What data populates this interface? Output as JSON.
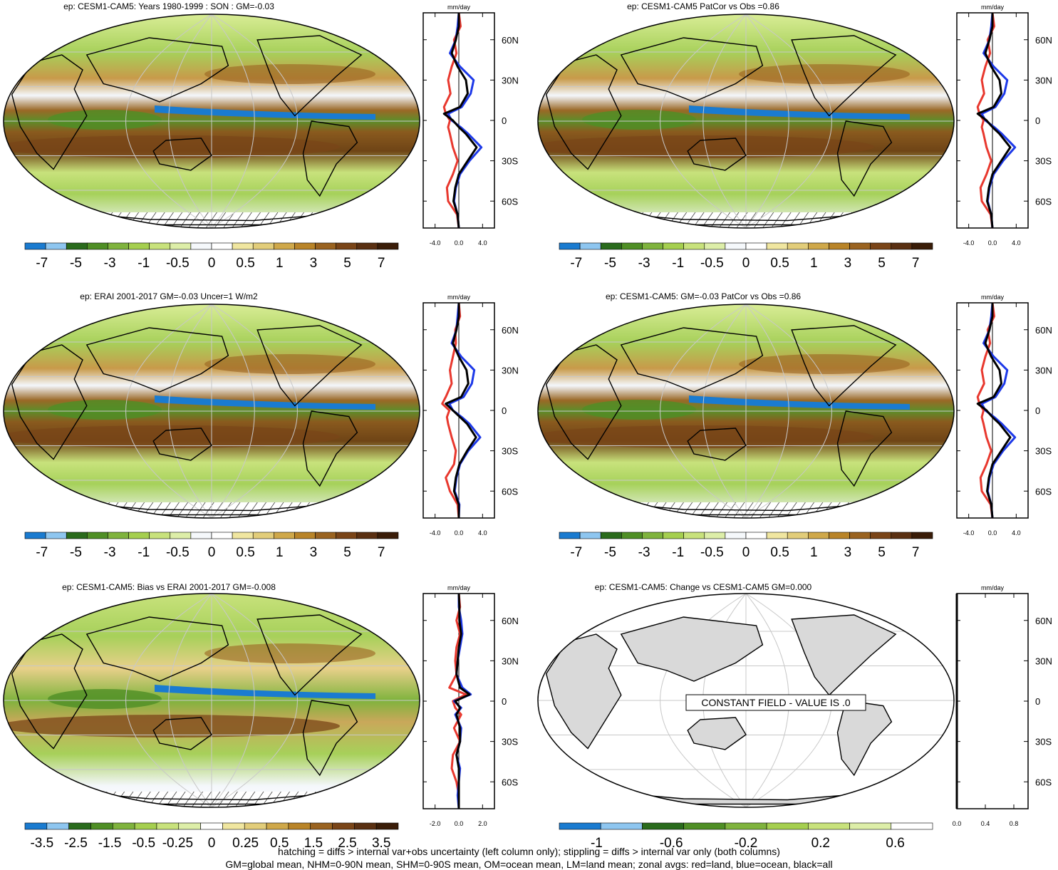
{
  "colors": {
    "precip_scale": [
      "#1a7bd0",
      "#8ec6f0",
      "#2a6b1c",
      "#4f8f25",
      "#7fb33d",
      "#a5cf4f",
      "#c8e27c",
      "#ddeea8",
      "#f5f8fb",
      "#ffffff",
      "#f0e6a0",
      "#e2cd7a",
      "#cfa84a",
      "#b98428",
      "#9a6320",
      "#7a4518",
      "#5a3012",
      "#3a1d08"
    ],
    "diff_scale": [
      "#1a7bd0",
      "#8ec6f0",
      "#2a6b1c",
      "#4f8f25",
      "#7fb33d",
      "#a5cf4f",
      "#c8e27c",
      "#ddeea8",
      "#ffffff",
      "#f0e6a0",
      "#e2cd7a",
      "#cfa84a",
      "#b98428",
      "#9a6320",
      "#7a4518",
      "#5a3012",
      "#3a1d08"
    ],
    "change_scale": [
      "#1a7bd0",
      "#8ec6f0",
      "#2a6b1c",
      "#4f8f25",
      "#7fb33d",
      "#a5cf4f",
      "#c8e27c",
      "#ddeea8",
      "#ffffff"
    ],
    "land_gray": "#d9d9d9",
    "land": "#e8382e",
    "ocean": "#1d39e8",
    "all": "#000000"
  },
  "panels": [
    {
      "title": "ep: CESM1-CAM5: Years 1980-1999 : SON : GM=-0.03",
      "kind": "field",
      "colorbar_labels": [
        "-7",
        "-5",
        "-3",
        "-1",
        "-0.5",
        "0",
        "0.5",
        "1",
        "3",
        "5",
        "7"
      ],
      "zonal_xticks": [
        "-4.0",
        "0.0",
        "4.0"
      ],
      "zonal_xlim": [
        -6,
        6
      ]
    },
    {
      "title": "ep: CESM1-CAM5 PatCor vs Obs =0.86",
      "kind": "field",
      "colorbar_labels": [
        "-7",
        "-5",
        "-3",
        "-1",
        "-0.5",
        "0",
        "0.5",
        "1",
        "3",
        "5",
        "7"
      ],
      "zonal_xticks": [
        "-4.0",
        "0.0",
        "4.0"
      ],
      "zonal_xlim": [
        -6,
        6
      ]
    },
    {
      "title": "ep: ERAI 2001-2017 GM=-0.03 Uncer=1 W/m2",
      "kind": "field",
      "colorbar_labels": [
        "-7",
        "-5",
        "-3",
        "-1",
        "-0.5",
        "0",
        "0.5",
        "1",
        "3",
        "5",
        "7"
      ],
      "zonal_xticks": [
        "-4.0",
        "0.0",
        "4.0"
      ],
      "zonal_xlim": [
        -6,
        6
      ]
    },
    {
      "title": "ep: CESM1-CAM5: GM=-0.03 PatCor vs Obs =0.86",
      "kind": "field",
      "colorbar_labels": [
        "-7",
        "-5",
        "-3",
        "-1",
        "-0.5",
        "0",
        "0.5",
        "1",
        "3",
        "5",
        "7"
      ],
      "zonal_xticks": [
        "-4.0",
        "0.0",
        "4.0"
      ],
      "zonal_xlim": [
        -6,
        6
      ]
    },
    {
      "title": "ep: CESM1-CAM5: Bias vs ERAI 2001-2017  GM=-0.008",
      "kind": "bias",
      "colorbar_labels": [
        "-3.5",
        "-2.5",
        "-1.5",
        "-0.5",
        "-0.25",
        "0",
        "0.25",
        "0.5",
        "1.5",
        "2.5",
        "3.5"
      ],
      "zonal_xticks": [
        "-2.0",
        "0.0",
        "2.0"
      ],
      "zonal_xlim": [
        -3,
        3
      ]
    },
    {
      "title": "ep: CESM1-CAM5: Change vs CESM1-CAM5 GM=0.000",
      "kind": "change",
      "colorbar_labels": [
        "-1",
        "-0.6",
        "-0.2",
        "0.2",
        "0.6"
      ],
      "zonal_xticks": [
        "0.0",
        "0.4",
        "0.8"
      ],
      "zonal_xlim": [
        0,
        1
      ],
      "message": "CONSTANT FIELD - VALUE IS .0"
    }
  ],
  "zonal_units": "mm/day",
  "lat_ticks": [
    "60N",
    "30N",
    "0",
    "30S",
    "60S"
  ],
  "chart_data": [
    {
      "type": "line",
      "title": "ep: CESM1-CAM5: Years 1980-1999 : SON : GM=-0.03",
      "x_label": "mm/day",
      "xlim": [
        -6,
        6
      ],
      "ylim": [
        -80,
        80
      ],
      "y_tick_labels": [
        "60N",
        "30N",
        "0",
        "30S",
        "60S"
      ],
      "y": [
        80,
        70,
        60,
        50,
        40,
        30,
        20,
        10,
        5,
        0,
        -5,
        -10,
        -20,
        -30,
        -40,
        -50,
        -60,
        -70,
        -80
      ],
      "series": [
        {
          "name": "land",
          "values": [
            0,
            0.3,
            -0.8,
            -0.4,
            -1.2,
            -1.8,
            -1.4,
            -2.5,
            -2.2,
            -1.5,
            -1.8,
            -1.5,
            -1.0,
            -0.2,
            -1.0,
            -2.0,
            -1.8,
            -0.3,
            0
          ]
        },
        {
          "name": "ocean",
          "values": [
            0,
            -0.2,
            -0.5,
            -1.5,
            0.2,
            2.5,
            2.0,
            0.5,
            -1.8,
            -1.2,
            0.3,
            1.6,
            3.8,
            1.8,
            0.2,
            -0.5,
            -0.8,
            -0.2,
            0
          ]
        },
        {
          "name": "all",
          "values": [
            0,
            0,
            -0.5,
            -1.2,
            -0.2,
            1.2,
            1.5,
            0.2,
            -2.5,
            -1.0,
            0,
            1.2,
            3.0,
            1.5,
            0,
            -0.6,
            -0.9,
            -0.2,
            0
          ]
        }
      ]
    },
    {
      "type": "line",
      "title": "ep: CESM1-CAM5 PatCor vs Obs =0.86",
      "x_label": "mm/day",
      "xlim": [
        -6,
        6
      ],
      "ylim": [
        -80,
        80
      ],
      "y_tick_labels": [
        "60N",
        "30N",
        "0",
        "30S",
        "60S"
      ],
      "y": [
        80,
        70,
        60,
        50,
        40,
        30,
        20,
        10,
        5,
        0,
        -5,
        -10,
        -20,
        -30,
        -40,
        -50,
        -60,
        -70,
        -80
      ],
      "series": [
        {
          "name": "land",
          "values": [
            0,
            0.3,
            -0.8,
            -0.4,
            -1.2,
            -1.8,
            -1.4,
            -2.5,
            -2.2,
            -1.5,
            -1.8,
            -1.5,
            -1.0,
            -0.2,
            -1.0,
            -2.0,
            -1.8,
            -0.3,
            0
          ]
        },
        {
          "name": "ocean",
          "values": [
            0,
            -0.2,
            -0.5,
            -1.5,
            0.2,
            2.5,
            2.0,
            0.5,
            -1.8,
            -1.2,
            0.3,
            1.6,
            3.8,
            1.8,
            0.2,
            -0.5,
            -0.8,
            -0.2,
            0
          ]
        },
        {
          "name": "all",
          "values": [
            0,
            0,
            -0.5,
            -1.2,
            -0.2,
            1.2,
            1.5,
            0.2,
            -2.5,
            -1.0,
            0,
            1.2,
            3.0,
            1.5,
            0,
            -0.6,
            -0.9,
            -0.2,
            0
          ]
        }
      ]
    },
    {
      "type": "line",
      "title": "ep: ERAI 2001-2017 GM=-0.03 Uncer=1 W/m2",
      "x_label": "mm/day",
      "xlim": [
        -6,
        6
      ],
      "ylim": [
        -80,
        80
      ],
      "y_tick_labels": [
        "60N",
        "30N",
        "0",
        "30S",
        "60S"
      ],
      "y": [
        80,
        70,
        60,
        50,
        40,
        30,
        20,
        10,
        5,
        0,
        -5,
        -10,
        -20,
        -30,
        -40,
        -50,
        -60,
        -70,
        -80
      ],
      "series": [
        {
          "name": "land",
          "values": [
            0,
            0.2,
            -0.6,
            -0.5,
            -1.0,
            -1.5,
            -1.2,
            -2.2,
            -2.8,
            -1.6,
            -2.0,
            -1.8,
            -1.2,
            -0.5,
            -0.8,
            -2.2,
            -1.5,
            -0.2,
            0
          ]
        },
        {
          "name": "ocean",
          "values": [
            0,
            -0.2,
            -0.4,
            -1.2,
            0.4,
            2.6,
            2.2,
            0.8,
            -1.6,
            -1.0,
            0.5,
            1.8,
            3.6,
            1.6,
            0.2,
            -0.4,
            -0.7,
            0.1,
            0
          ]
        },
        {
          "name": "all",
          "values": [
            0,
            0,
            -0.4,
            -1.0,
            0,
            1.3,
            1.6,
            0.4,
            -2.2,
            -1.0,
            0.2,
            1.4,
            2.9,
            1.4,
            0.1,
            -0.5,
            -0.8,
            0,
            0
          ]
        }
      ]
    },
    {
      "type": "line",
      "title": "ep: CESM1-CAM5: GM=-0.03 PatCor vs Obs =0.86",
      "x_label": "mm/day",
      "xlim": [
        -6,
        6
      ],
      "ylim": [
        -80,
        80
      ],
      "y_tick_labels": [
        "60N",
        "30N",
        "0",
        "30S",
        "60S"
      ],
      "y": [
        80,
        70,
        60,
        50,
        40,
        30,
        20,
        10,
        5,
        0,
        -5,
        -10,
        -20,
        -30,
        -40,
        -50,
        -60,
        -70,
        -80
      ],
      "series": [
        {
          "name": "land",
          "values": [
            0,
            0.3,
            -0.8,
            -0.4,
            -1.2,
            -1.8,
            -1.4,
            -2.5,
            -2.2,
            -1.5,
            -1.8,
            -1.5,
            -1.0,
            -0.2,
            -1.0,
            -2.0,
            -1.8,
            -0.3,
            0
          ]
        },
        {
          "name": "ocean",
          "values": [
            0,
            -0.2,
            -0.5,
            -1.5,
            0.2,
            2.5,
            2.0,
            0.5,
            -1.8,
            -1.2,
            0.3,
            1.6,
            3.8,
            1.8,
            0.2,
            -0.5,
            -0.8,
            -0.2,
            0
          ]
        },
        {
          "name": "all",
          "values": [
            0,
            0,
            -0.5,
            -1.2,
            -0.2,
            1.2,
            1.5,
            0.2,
            -2.5,
            -1.0,
            0,
            1.2,
            3.0,
            1.5,
            0,
            -0.6,
            -0.9,
            -0.2,
            0
          ]
        }
      ]
    },
    {
      "type": "line",
      "title": "ep: CESM1-CAM5: Bias vs ERAI 2001-2017  GM=-0.008",
      "x_label": "mm/day",
      "xlim": [
        -3,
        3
      ],
      "ylim": [
        -80,
        80
      ],
      "y_tick_labels": [
        "60N",
        "30N",
        "0",
        "30S",
        "60S"
      ],
      "y": [
        80,
        70,
        60,
        50,
        40,
        30,
        20,
        10,
        5,
        0,
        -5,
        -10,
        -20,
        -30,
        -40,
        -50,
        -60,
        -70,
        -80
      ],
      "series": [
        {
          "name": "land",
          "values": [
            0,
            0.1,
            -0.2,
            0.1,
            -0.2,
            -0.3,
            -0.2,
            -0.8,
            0.6,
            -0.5,
            -0.3,
            0.2,
            -0.4,
            0.1,
            -0.5,
            -0.6,
            -0.2,
            0,
            0
          ]
        },
        {
          "name": "ocean",
          "values": [
            0,
            0,
            0.2,
            0.3,
            0.1,
            -0.1,
            -0.2,
            0.3,
            1.0,
            -0.4,
            0.2,
            -0.3,
            0.2,
            0.1,
            -0.2,
            0.1,
            0,
            -0.1,
            0
          ]
        },
        {
          "name": "all",
          "values": [
            0,
            0.05,
            0.05,
            0.2,
            0,
            -0.1,
            -0.2,
            0.1,
            0.9,
            -0.3,
            0.1,
            -0.2,
            0.1,
            0.1,
            -0.2,
            0,
            0,
            0,
            0
          ]
        }
      ]
    },
    {
      "type": "line",
      "title": "ep: CESM1-CAM5: Change vs CESM1-CAM5 GM=0.000",
      "x_label": "mm/day",
      "xlim": [
        0,
        1
      ],
      "ylim": [
        -80,
        80
      ],
      "y_tick_labels": [
        "60N",
        "30N",
        "0",
        "30S",
        "60S"
      ],
      "y": [
        80,
        -80
      ],
      "series": [
        {
          "name": "land",
          "values": [
            0,
            0
          ]
        },
        {
          "name": "ocean",
          "values": [
            0,
            0
          ]
        },
        {
          "name": "all",
          "values": [
            0,
            0
          ]
        }
      ]
    }
  ],
  "footer": {
    "line1": "hatching = diffs > internal var+obs uncertainty (left column only); stippling = diffs > internal var only (both columns)",
    "line2": "GM=global mean, NHM=0-90N mean, SHM=0-90S mean, OM=ocean mean, LM=land mean; zonal avgs: red=land, blue=ocean, black=all"
  }
}
